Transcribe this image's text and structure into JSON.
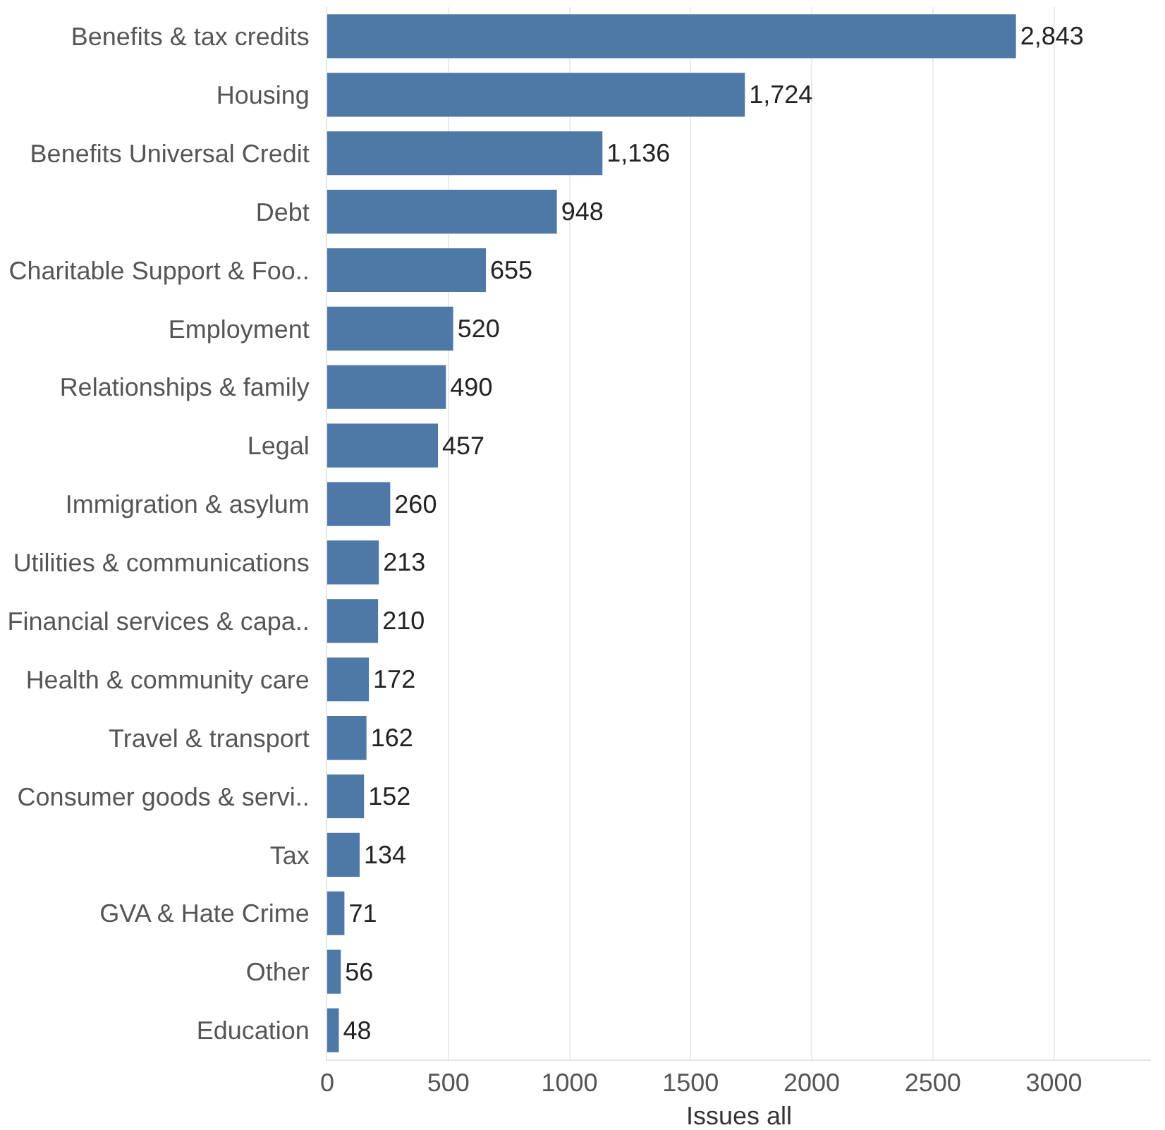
{
  "chart_data": {
    "type": "bar",
    "orientation": "horizontal",
    "xlabel": "Issues all",
    "categories": [
      "Benefits & tax credits",
      "Housing",
      "Benefits Universal Credit",
      "Debt",
      "Charitable Support & Foo..",
      "Employment",
      "Relationships & family",
      "Legal",
      "Immigration & asylum",
      "Utilities & communications",
      "Financial services & capa..",
      "Health & community care",
      "Travel & transport",
      "Consumer goods & servi..",
      "Tax",
      "GVA & Hate Crime",
      "Other",
      "Education"
    ],
    "values": [
      2843,
      1724,
      1136,
      948,
      655,
      520,
      490,
      457,
      260,
      213,
      210,
      172,
      162,
      152,
      134,
      71,
      56,
      48
    ],
    "value_labels": [
      "2,843",
      "1,724",
      "1,136",
      "948",
      "655",
      "520",
      "490",
      "457",
      "260",
      "213",
      "210",
      "172",
      "162",
      "152",
      "134",
      "71",
      "56",
      "48"
    ],
    "color": "#4e79a7",
    "xlim": [
      0,
      3400
    ],
    "xticks": [
      0,
      500,
      1000,
      1500,
      2000,
      2500,
      3000
    ],
    "grid": "x",
    "legend": false
  }
}
